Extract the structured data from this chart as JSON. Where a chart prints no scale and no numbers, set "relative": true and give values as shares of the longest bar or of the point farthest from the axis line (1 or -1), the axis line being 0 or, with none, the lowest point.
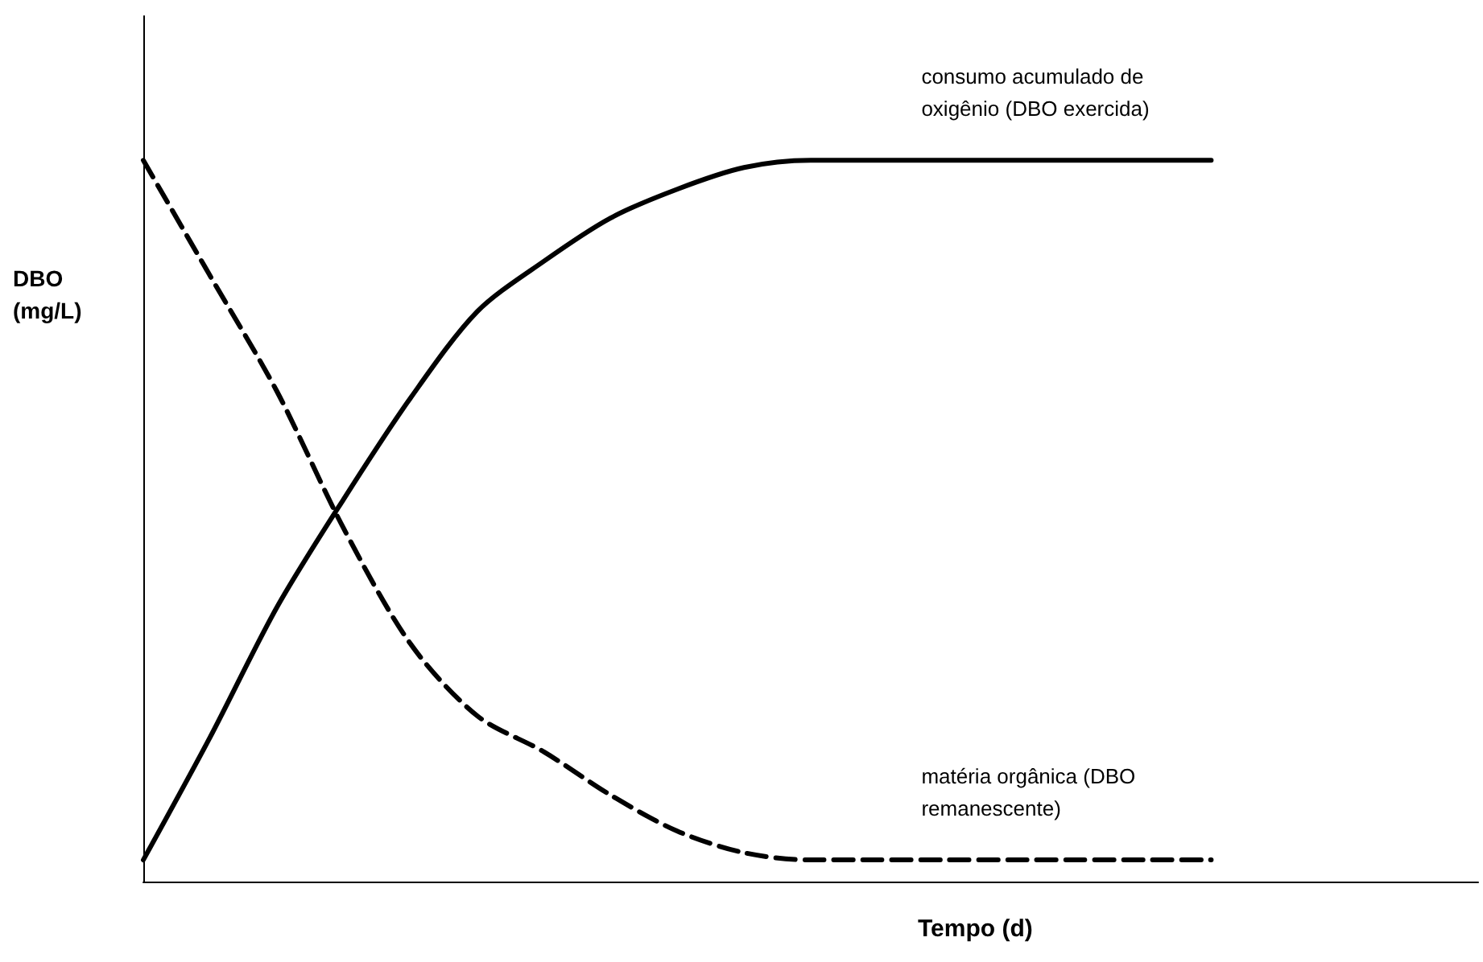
{
  "chart_data": {
    "type": "line",
    "relative": true,
    "xlabel": "Tempo (d)",
    "ylabel": "DBO (mg/L)",
    "categories": [
      null,
      null,
      null,
      null,
      null,
      null,
      null,
      null,
      null,
      null,
      null,
      null,
      null,
      null,
      null,
      null,
      null,
      null,
      null,
      null,
      null
    ],
    "marker": "none",
    "grid": false,
    "legend": false,
    "series": [
      {
        "name": "consumo acumulado de oxigênio (DBO exercida)",
        "color": "#000000",
        "line_style": "solid",
        "values": [
          0.03,
          0.2,
          0.38,
          0.53,
          0.67,
          0.79,
          0.86,
          0.92,
          0.96,
          0.99,
          1.0,
          1.0,
          1.0,
          1.0,
          1.0,
          1.0,
          1.0,
          null,
          null,
          null,
          null
        ]
      },
      {
        "name": "matéria orgânica (DBO remanescente)",
        "color": "#000000",
        "line_style": "dashed",
        "values": [
          1.0,
          0.84,
          0.68,
          0.49,
          0.33,
          0.23,
          0.18,
          0.12,
          0.07,
          0.04,
          0.03,
          0.03,
          0.03,
          0.03,
          0.03,
          0.03,
          0.03,
          null,
          null,
          null,
          null
        ]
      }
    ]
  }
}
